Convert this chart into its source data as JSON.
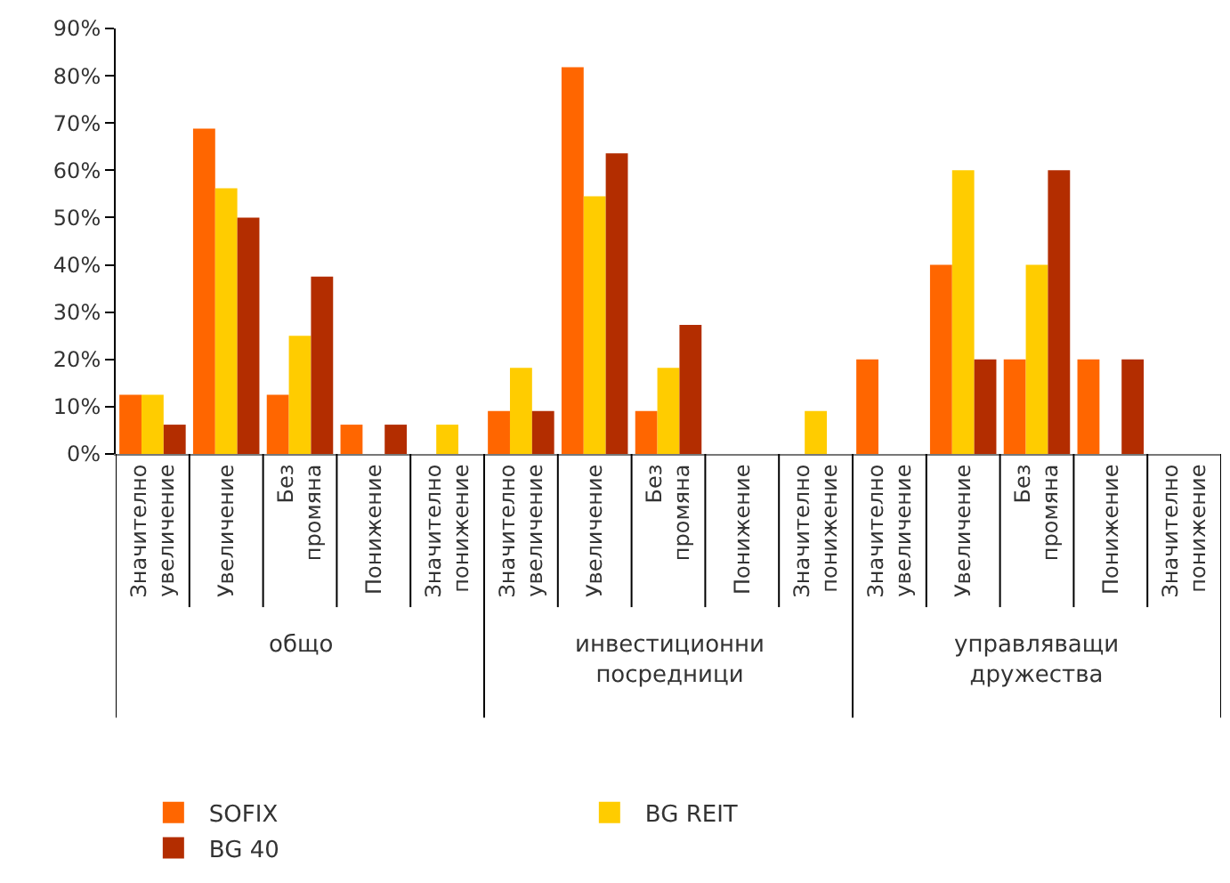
{
  "chart_data": {
    "type": "bar",
    "categories": [
      "Значително увеличение",
      "Увеличение",
      "Без промяна",
      "Понижение",
      "Значително понижение",
      "Значително увеличение",
      "Увеличение",
      "Без промяна",
      "Понижение",
      "Значително понижение",
      "Значително увеличение",
      "Увеличение",
      "Без промяна",
      "Понижение",
      "Значително понижение"
    ],
    "series": [
      {
        "name": "SOFIX",
        "color": "#ff6600",
        "values": [
          12.5,
          68.8,
          12.5,
          6.2,
          0,
          9.1,
          81.8,
          9.1,
          0,
          0,
          20,
          40,
          20,
          20,
          0
        ]
      },
      {
        "name": "BG REIT",
        "color": "#ffcc00",
        "values": [
          12.5,
          56.2,
          25,
          0,
          6.2,
          18.2,
          54.5,
          18.2,
          0,
          9.1,
          0,
          60,
          40,
          0,
          0
        ]
      },
      {
        "name": "BG 40",
        "color": "#b32d00",
        "values": [
          6.2,
          50,
          37.5,
          6.2,
          0,
          9.1,
          63.6,
          27.3,
          0,
          0,
          0,
          20,
          60,
          20,
          0
        ]
      }
    ],
    "annotations": [
      "общо",
      "инвестиционни посредници",
      "управляващи дружества"
    ],
    "ylim": [
      0,
      90
    ],
    "yticks": [
      {
        "value": 0,
        "label": "0%"
      },
      {
        "value": 10,
        "label": "10%"
      },
      {
        "value": 20,
        "label": "20%"
      },
      {
        "value": 30,
        "label": "30%"
      },
      {
        "value": 40,
        "label": "40%"
      },
      {
        "value": 50,
        "label": "50%"
      },
      {
        "value": 60,
        "label": "60%"
      },
      {
        "value": 70,
        "label": "70%"
      },
      {
        "value": 80,
        "label": "80%"
      },
      {
        "value": 90,
        "label": "90%"
      }
    ],
    "grid": false,
    "legend": "bottom"
  }
}
